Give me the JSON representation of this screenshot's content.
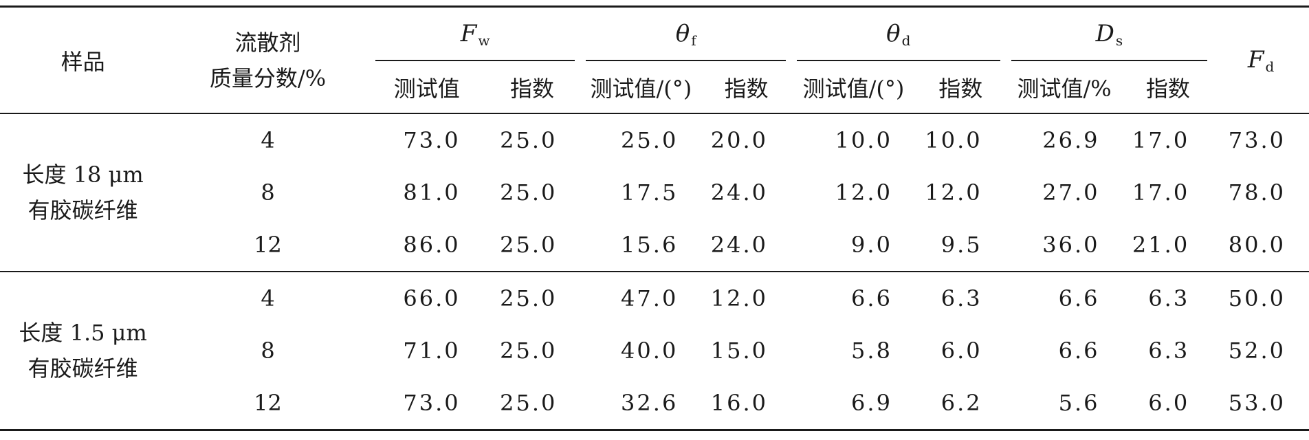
{
  "header": {
    "sample": "样品",
    "dispersant_line1": "流散剂",
    "dispersant_line2": "质量分数/%",
    "fw_symbol": "F",
    "fw_sub": "w",
    "thetaf_symbol": "θ",
    "thetaf_sub": "f",
    "thetad_symbol": "θ",
    "thetad_sub": "d",
    "ds_symbol": "D",
    "ds_sub": "s",
    "fd_symbol": "F",
    "fd_sub": "d",
    "fw_test": "测试值",
    "fw_index": "指数",
    "thetaf_test": "测试值/(°)",
    "thetaf_index": "指数",
    "thetad_test": "测试值/(°)",
    "thetad_index": "指数",
    "ds_test": "测试值/%",
    "ds_index": "指数"
  },
  "groups": [
    {
      "label_line1": "长度 18 μm",
      "label_line2": "有胶碳纤维",
      "rows": [
        [
          "4",
          "73.0",
          "25.0",
          "25.0",
          "20.0",
          "10.0",
          "10.0",
          "26.9",
          "17.0",
          "73.0"
        ],
        [
          "8",
          "81.0",
          "25.0",
          "17.5",
          "24.0",
          "12.0",
          "12.0",
          "27.0",
          "17.0",
          "78.0"
        ],
        [
          "12",
          "86.0",
          "25.0",
          "15.6",
          "24.0",
          "9.0",
          "9.5",
          "36.0",
          "21.0",
          "80.0"
        ]
      ]
    },
    {
      "label_line1": "长度 1.5 μm",
      "label_line2": "有胶碳纤维",
      "rows": [
        [
          "4",
          "66.0",
          "25.0",
          "47.0",
          "12.0",
          "6.6",
          "6.3",
          "6.6",
          "6.3",
          "50.0"
        ],
        [
          "8",
          "71.0",
          "25.0",
          "40.0",
          "15.0",
          "5.8",
          "6.0",
          "6.6",
          "6.3",
          "52.0"
        ],
        [
          "12",
          "73.0",
          "25.0",
          "32.6",
          "16.0",
          "6.9",
          "6.2",
          "5.6",
          "6.0",
          "53.0"
        ]
      ]
    }
  ]
}
